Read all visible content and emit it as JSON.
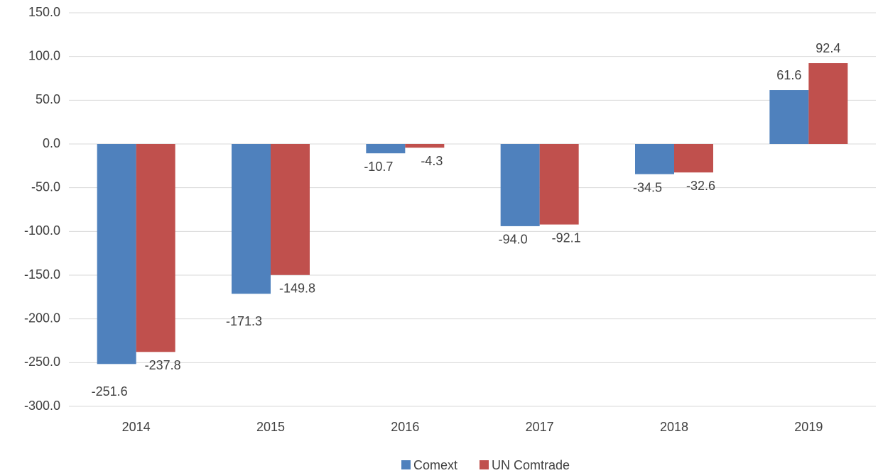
{
  "chart_data": {
    "type": "bar",
    "categories": [
      "2014",
      "2015",
      "2016",
      "2017",
      "2018",
      "2019"
    ],
    "series": [
      {
        "name": "Comext",
        "color": "#4f81bd",
        "values": [
          -251.6,
          -171.3,
          -10.7,
          -94.0,
          -34.5,
          61.6
        ],
        "value_labels": [
          "-251.6",
          "-171.3",
          "-10.7",
          "-94.0",
          "-34.5",
          "61.6"
        ]
      },
      {
        "name": "UN Comtrade",
        "color": "#c0504d",
        "values": [
          -237.8,
          -149.8,
          -4.3,
          -92.1,
          -32.6,
          92.4
        ],
        "value_labels": [
          "-237.8",
          "-149.8",
          "-4.3",
          "-92.1",
          "-32.6",
          "92.4"
        ]
      }
    ],
    "ylim": [
      -300,
      150
    ],
    "yticks": [
      {
        "value": -300,
        "label": "-300.0"
      },
      {
        "value": -250,
        "label": "-250.0"
      },
      {
        "value": -200,
        "label": "-200.0"
      },
      {
        "value": -150,
        "label": "-150.0"
      },
      {
        "value": -100,
        "label": "-100.0"
      },
      {
        "value": -50,
        "label": "-50.0"
      },
      {
        "value": 0,
        "label": "0.0"
      },
      {
        "value": 50,
        "label": "50.0"
      },
      {
        "value": 100,
        "label": "100.0"
      },
      {
        "value": 150,
        "label": "150.0"
      }
    ],
    "grid": true,
    "legend": "bottom"
  }
}
